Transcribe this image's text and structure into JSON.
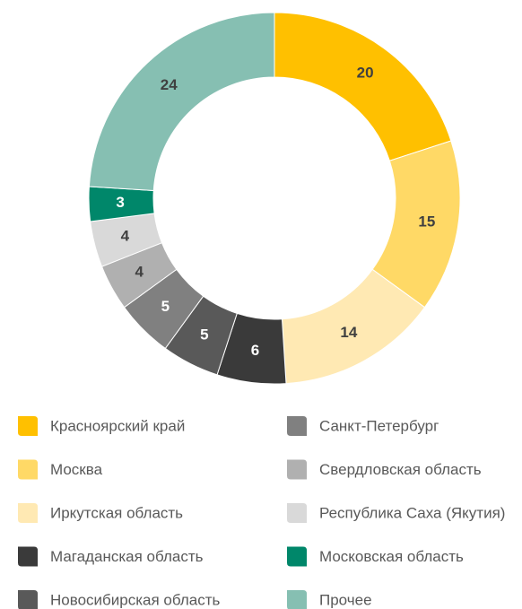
{
  "chart_data": {
    "type": "donut",
    "categories": [
      "Красноярский край",
      "Москва",
      "Иркутская область",
      "Магаданская область",
      "Новосибирская область",
      "Санкт-Петербург",
      "Свердловская область",
      "Республика Саха (Якутия)",
      "Московская область",
      "Прочее"
    ],
    "values": [
      20,
      15,
      14,
      6,
      5,
      5,
      4,
      4,
      3,
      24
    ],
    "colors": [
      "#ffc000",
      "#ffd966",
      "#ffe9b3",
      "#3a3a3a",
      "#595959",
      "#808080",
      "#b0b0b0",
      "#d9d9d9",
      "#00876a",
      "#86bfb2"
    ],
    "label_colors": [
      "#404040",
      "#404040",
      "#404040",
      "#ffffff",
      "#ffffff",
      "#ffffff",
      "#404040",
      "#404040",
      "#ffffff",
      "#404040"
    ]
  }
}
